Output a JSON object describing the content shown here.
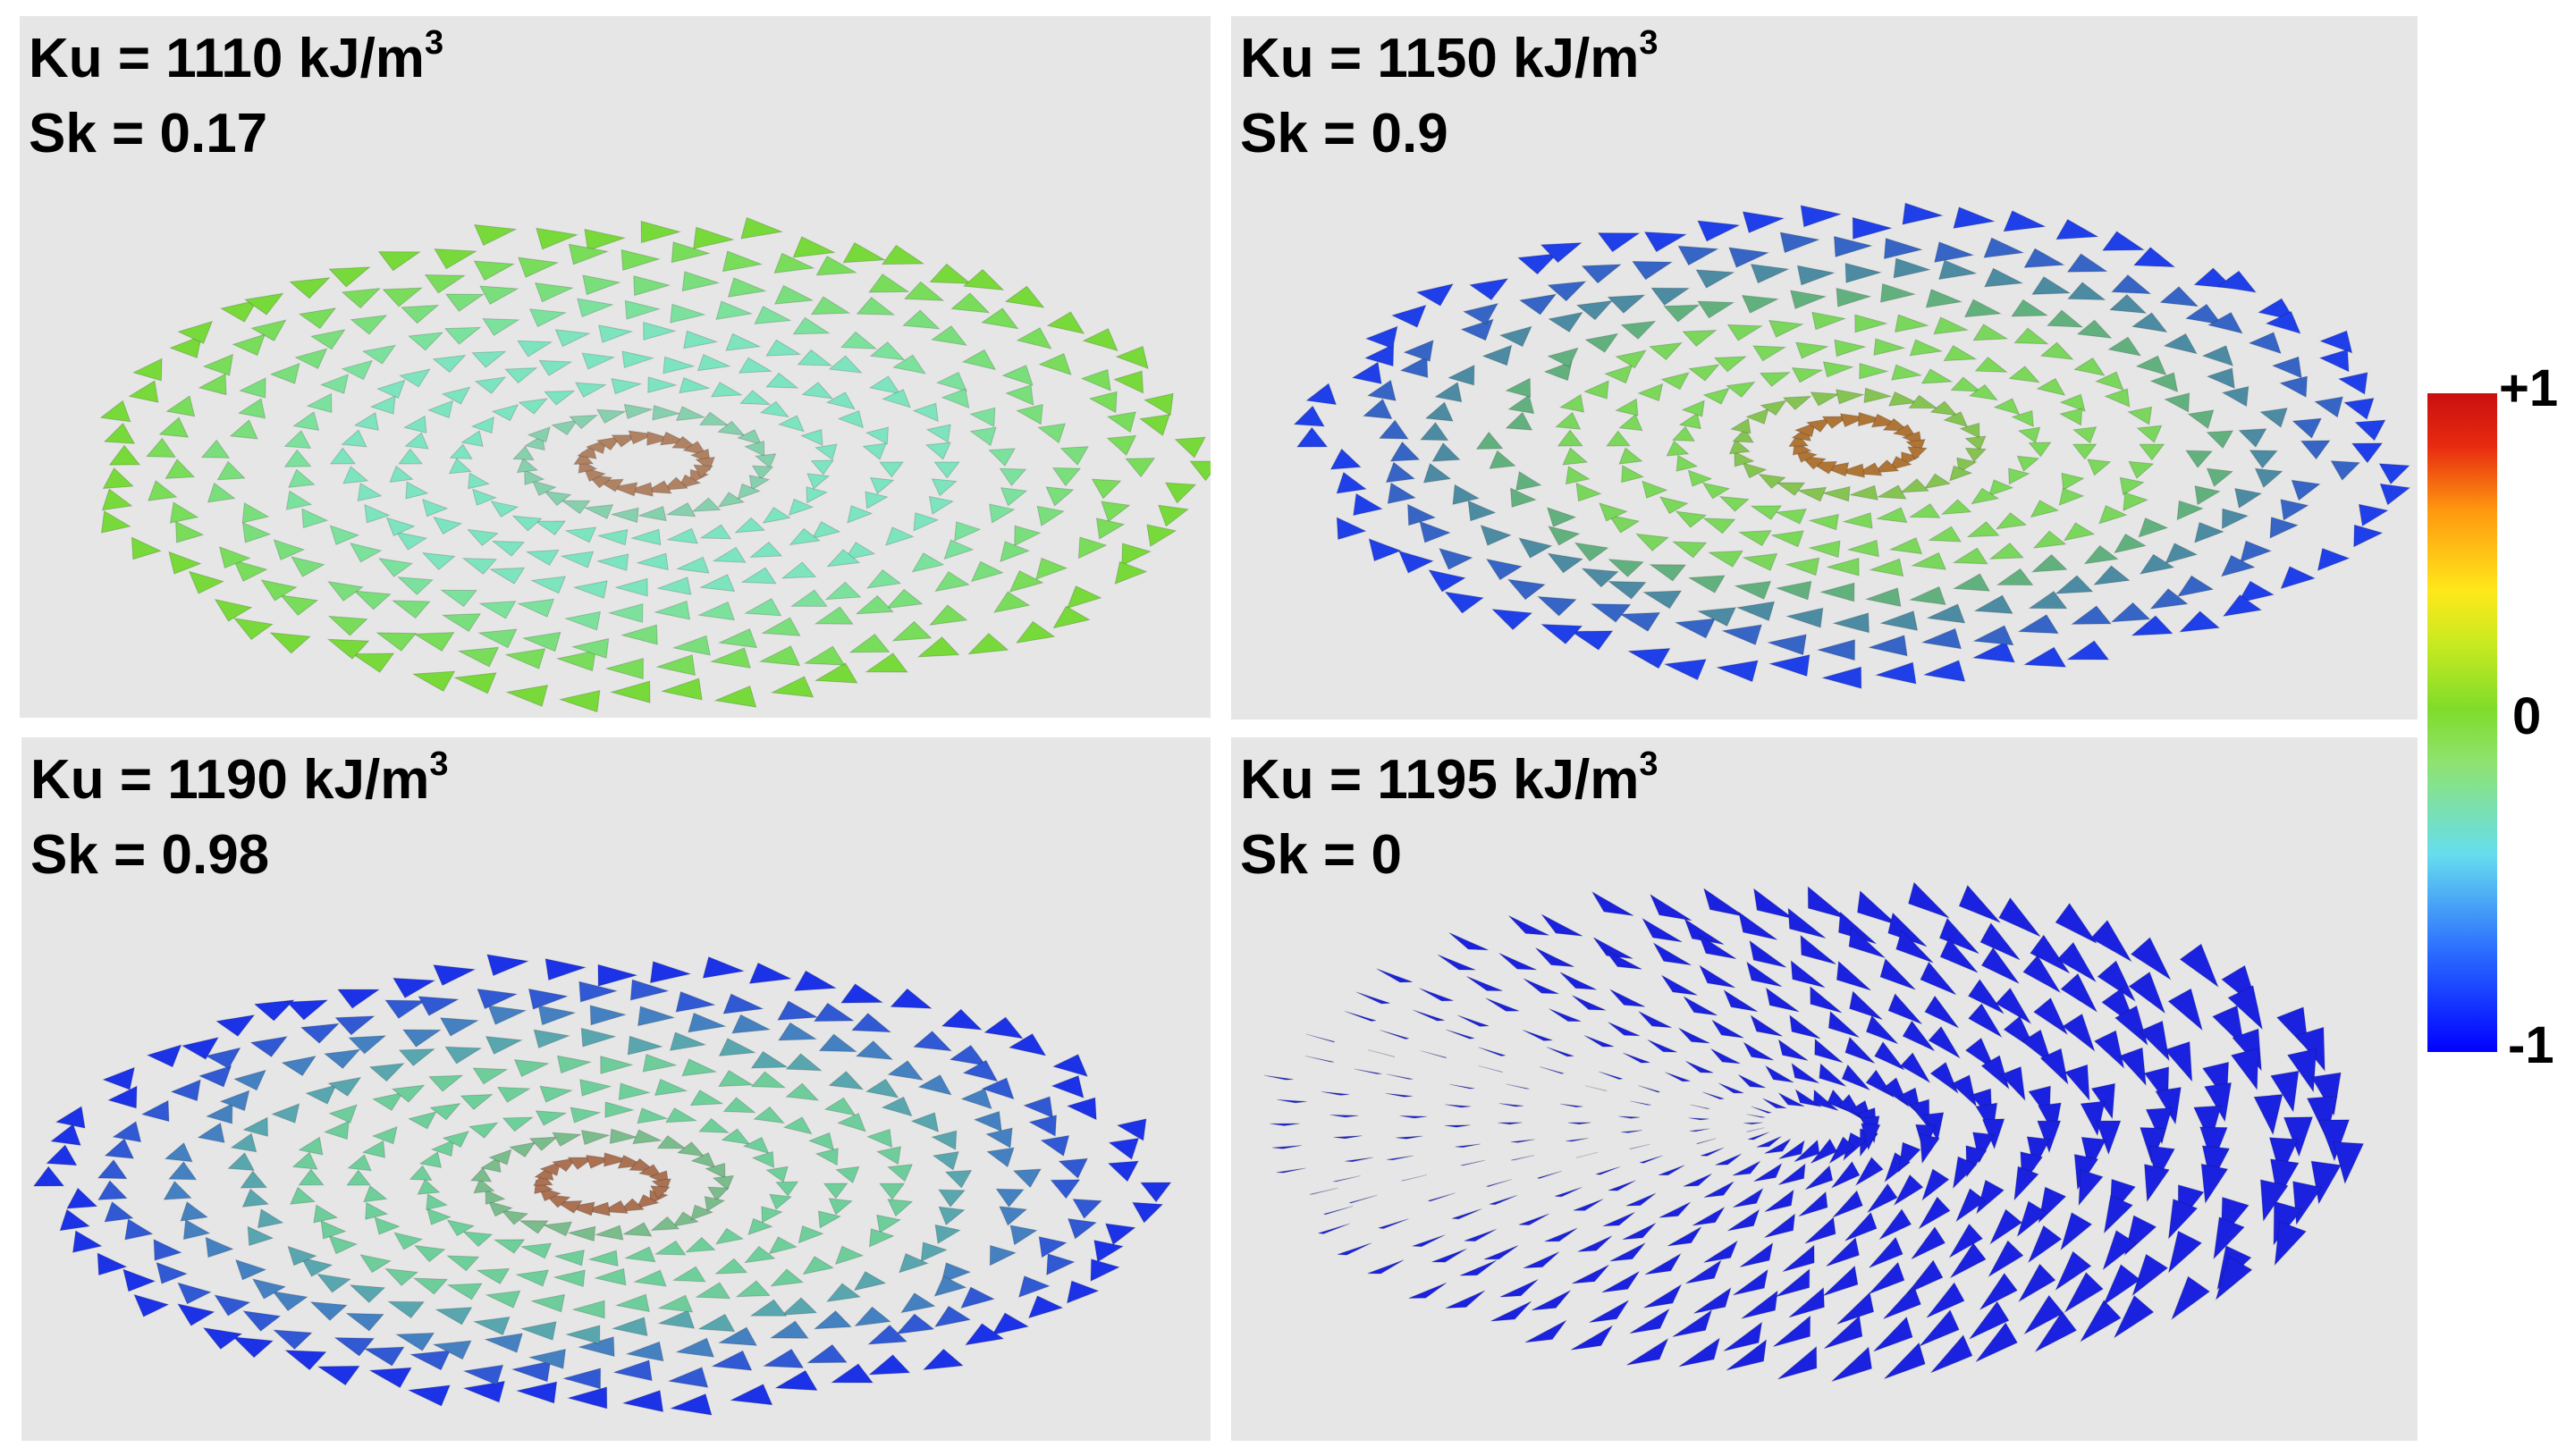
{
  "panels": [
    {
      "ku_label": "Ku = 1110 kJ/m",
      "ku_sup": "3",
      "sk_label": "Sk = 0.17",
      "core_color": "#d9331a",
      "mid_color": "#7de4c0",
      "outer_color": "#78d93a",
      "core_strength": 0.55
    },
    {
      "ku_label": "Ku = 1150 kJ/m",
      "ku_sup": "3",
      "sk_label": "Sk = 0.9",
      "core_color": "#d9261a",
      "mid_color": "#7bd85a",
      "outer_color": "#1f3fe8",
      "core_strength": 0.8
    },
    {
      "ku_label": "Ku = 1190 kJ/m",
      "ku_sup": "3",
      "sk_label": "Sk = 0.98",
      "core_color": "#d9261a",
      "mid_color": "#6fcf9a",
      "outer_color": "#1c32e6",
      "core_strength": 0.9
    },
    {
      "ku_label": "Ku = 1195 kJ/m",
      "ku_sup": "3",
      "sk_label": "Sk = 0",
      "core_color": "#1a22e0",
      "mid_color": "#1a22e0",
      "outer_color": "#1a22e0",
      "core_strength": 0
    }
  ],
  "colorbar": {
    "max_label": "+1",
    "mid_label": "0",
    "min_label": "-1",
    "colors": [
      "#0000ff",
      "#66ddee",
      "#7fdc2a",
      "#ffe81a",
      "#c81010"
    ]
  }
}
